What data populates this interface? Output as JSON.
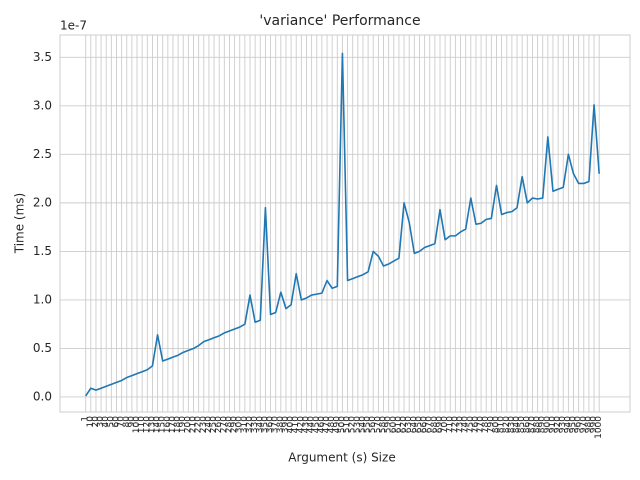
{
  "chart_data": {
    "type": "line",
    "title": "'variance' Performance",
    "xlabel": "Argument (s) Size",
    "ylabel": "Time (ms)",
    "y_offset_label": "1e-7",
    "color": "#1f77b4",
    "grid": true,
    "categories": [
      "1",
      "10",
      "20",
      "30",
      "40",
      "50",
      "60",
      "70",
      "80",
      "90",
      "100",
      "110",
      "120",
      "130",
      "140",
      "150",
      "160",
      "170",
      "180",
      "190",
      "200",
      "210",
      "220",
      "230",
      "240",
      "250",
      "260",
      "270",
      "280",
      "290",
      "300",
      "310",
      "320",
      "330",
      "340",
      "350",
      "360",
      "370",
      "380",
      "390",
      "400",
      "410",
      "420",
      "430",
      "440",
      "450",
      "460",
      "470",
      "480",
      "490",
      "500",
      "510",
      "520",
      "530",
      "540",
      "550",
      "560",
      "570",
      "580",
      "590",
      "600",
      "610",
      "620",
      "630",
      "640",
      "650",
      "660",
      "670",
      "680",
      "690",
      "700",
      "710",
      "720",
      "730",
      "740",
      "750",
      "760",
      "770",
      "780",
      "790",
      "800",
      "810",
      "820",
      "830",
      "840",
      "850",
      "860",
      "870",
      "880",
      "890",
      "900",
      "910",
      "920",
      "930",
      "940",
      "950",
      "960",
      "970",
      "980",
      "990",
      "1000"
    ],
    "values": [
      0.01,
      0.09,
      0.07,
      0.09,
      0.11,
      0.13,
      0.15,
      0.17,
      0.2,
      0.22,
      0.24,
      0.26,
      0.28,
      0.32,
      0.64,
      0.37,
      0.39,
      0.41,
      0.43,
      0.46,
      0.48,
      0.5,
      0.53,
      0.57,
      0.59,
      0.61,
      0.63,
      0.66,
      0.68,
      0.7,
      0.72,
      0.75,
      1.05,
      0.77,
      0.79,
      1.95,
      0.85,
      0.87,
      1.08,
      0.91,
      0.95,
      1.27,
      1.0,
      1.02,
      1.05,
      1.06,
      1.07,
      1.2,
      1.12,
      1.14,
      3.54,
      1.2,
      1.22,
      1.24,
      1.26,
      1.29,
      1.5,
      1.45,
      1.35,
      1.37,
      1.4,
      1.43,
      2.0,
      1.8,
      1.48,
      1.5,
      1.54,
      1.56,
      1.58,
      1.93,
      1.62,
      1.66,
      1.66,
      1.7,
      1.73,
      2.05,
      1.78,
      1.79,
      1.83,
      1.84,
      2.18,
      1.88,
      1.9,
      1.91,
      1.95,
      2.27,
      2.0,
      2.05,
      2.04,
      2.05,
      2.68,
      2.12,
      2.14,
      2.16,
      2.5,
      2.3,
      2.2,
      2.2,
      2.22,
      3.01,
      2.3
    ],
    "xlim": [
      -5,
      106
    ],
    "ylim": [
      -0.155,
      3.73
    ],
    "yticks": [
      {
        "value": 0,
        "label": "0.0"
      },
      0.5,
      {
        "value": 1,
        "label": "1.0"
      },
      1.5,
      {
        "value": 2,
        "label": "2.0"
      },
      2.5,
      {
        "value": 3,
        "label": "3.0"
      },
      3.5
    ]
  }
}
